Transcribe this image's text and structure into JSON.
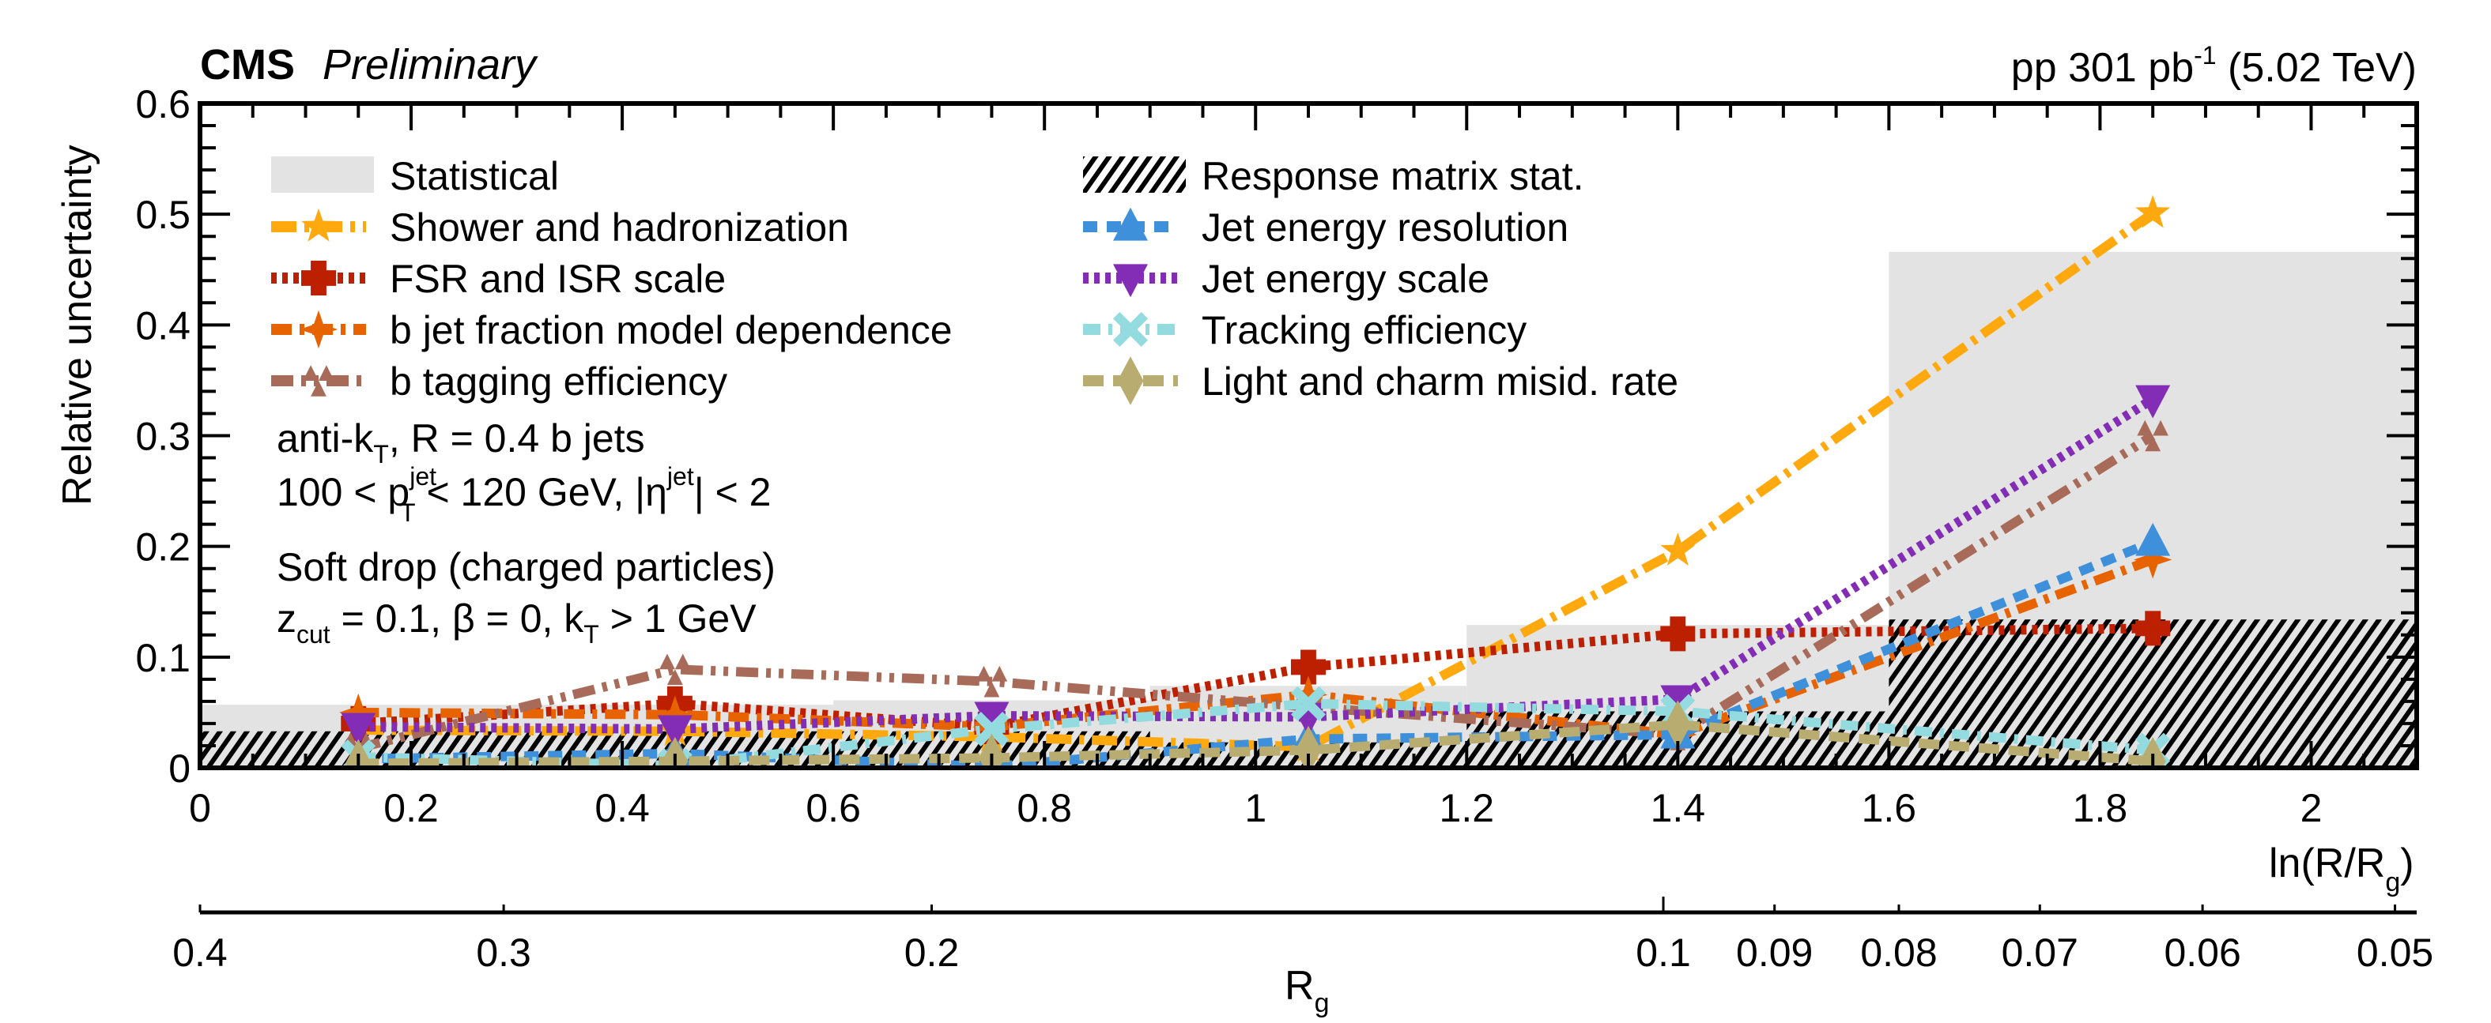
{
  "header": {
    "experiment": "CMS",
    "status": "Preliminary",
    "lumi_prefix": "pp 301 pb",
    "lumi_sup": "-1",
    "lumi_suffix": " (5.02 TeV)"
  },
  "annotations": {
    "line1_main": "anti-k",
    "line1_sub": "T",
    "line1_rest": ", R = 0.4 b jets",
    "line2_a": "100 < p",
    "line2_sup": "jet",
    "line2_sub": "T",
    "line2_b": " < 120 GeV, |η",
    "line2_sup2": "jet",
    "line2_c": "| < 2",
    "line3": "Soft drop (charged particles)",
    "line4_a": "z",
    "line4_sub": "cut",
    "line4_b": " = 0.1, β = 0, k",
    "line4_sub2": "T",
    "line4_c": " > 1 GeV"
  },
  "chart_data": {
    "type": "line",
    "title": "",
    "ylabel": "Relative uncertainty",
    "xlabel_main": "ln(R/R",
    "xlabel_sub": "g",
    "xlabel_end": ")",
    "xlim": [
      0,
      2.1
    ],
    "ylim": [
      0,
      0.6
    ],
    "x_ticks": [
      0,
      0.2,
      0.4,
      0.6,
      0.8,
      1,
      1.2,
      1.4,
      1.6,
      1.8,
      2
    ],
    "x_tick_labels": [
      "0",
      "0.2",
      "0.4",
      "0.6",
      "0.8",
      "1",
      "1.2",
      "1.4",
      "1.6",
      "1.8",
      "2"
    ],
    "y_ticks": [
      0,
      0.1,
      0.2,
      0.3,
      0.4,
      0.5,
      0.6
    ],
    "y_tick_labels": [
      "0",
      "0.1",
      "0.2",
      "0.3",
      "0.4",
      "0.5",
      "0.6"
    ],
    "secondary_axis": {
      "label_main": "R",
      "label_sub": "g",
      "ticks": [
        0.4,
        0.3,
        0.2,
        0.1,
        0.09,
        0.08,
        0.07,
        0.06,
        0.05
      ],
      "tick_labels": [
        "0.4",
        "0.3",
        "0.2",
        "0.1",
        "0.09",
        "0.08",
        "0.07",
        "0.06",
        "0.05"
      ],
      "relation": "ln(0.4/Rg)"
    },
    "legend_position": "top",
    "bins": [
      {
        "x_low": 0.0,
        "x_high": 0.3
      },
      {
        "x_low": 0.3,
        "x_high": 0.6
      },
      {
        "x_low": 0.6,
        "x_high": 0.9
      },
      {
        "x_low": 0.9,
        "x_high": 1.2
      },
      {
        "x_low": 1.2,
        "x_high": 1.6
      },
      {
        "x_low": 1.6,
        "x_high": 2.1
      }
    ],
    "bands": [
      {
        "name": "Statistical",
        "style": "fill",
        "color": "#e3e3e3",
        "values": [
          0.057,
          0.057,
          0.061,
          0.074,
          0.129,
          0.466
        ]
      },
      {
        "name": "Response matrix stat.",
        "style": "hatch",
        "color": "#000000",
        "values": [
          0.033,
          0.033,
          0.033,
          0.023,
          0.051,
          0.134
        ]
      }
    ],
    "x": [
      0.15,
      0.45,
      0.75,
      1.05,
      1.4,
      1.85
    ],
    "series": [
      {
        "name": "Shower and hadronization",
        "color": "#ffa90e",
        "marker": "star",
        "dash": "dashdot",
        "values": [
          0.034,
          0.033,
          0.028,
          0.019,
          0.196,
          0.501
        ]
      },
      {
        "name": "FSR and ISR scale",
        "color": "#bd1f01",
        "marker": "cross",
        "dash": "dotted",
        "values": [
          0.04,
          0.058,
          0.037,
          0.091,
          0.121,
          0.126
        ]
      },
      {
        "name": "b jet fraction model dependence",
        "color": "#e76300",
        "marker": "star4",
        "dash": "dashdot2",
        "values": [
          0.05,
          0.048,
          0.037,
          0.066,
          0.03,
          0.188
        ]
      },
      {
        "name": "b tagging efficiency",
        "color": "#a96b59",
        "marker": "tri3",
        "dash": "dashdotdot",
        "values": [
          0.018,
          0.089,
          0.078,
          0.055,
          0.03,
          0.3
        ]
      },
      {
        "name": "Jet energy resolution",
        "color": "#3f90da",
        "marker": "triangle-up",
        "dash": "dashed",
        "values": [
          0.008,
          0.013,
          0.001,
          0.026,
          0.03,
          0.204
        ]
      },
      {
        "name": "Jet energy scale",
        "color": "#832db6",
        "marker": "triangle-down",
        "dash": "dotted",
        "values": [
          0.037,
          0.035,
          0.047,
          0.046,
          0.062,
          0.333
        ]
      },
      {
        "name": "Tracking efficiency",
        "color": "#94dbdf",
        "marker": "xcross",
        "dash": "dashdot3",
        "values": [
          0.01,
          0.002,
          0.035,
          0.058,
          0.051,
          0.016
        ]
      },
      {
        "name": "Light and charm misid. rate",
        "color": "#b9ac70",
        "marker": "diamond",
        "dash": "longdash",
        "values": [
          0.004,
          0.006,
          0.009,
          0.016,
          0.039,
          0.006
        ]
      }
    ],
    "legend_left": [
      "Statistical",
      "Shower and hadronization",
      "FSR and ISR scale",
      "b jet fraction model dependence",
      "b tagging efficiency"
    ],
    "legend_right": [
      "Response matrix stat.",
      "Jet energy resolution",
      "Jet energy scale",
      "Tracking efficiency",
      "Light and charm misid. rate"
    ]
  }
}
